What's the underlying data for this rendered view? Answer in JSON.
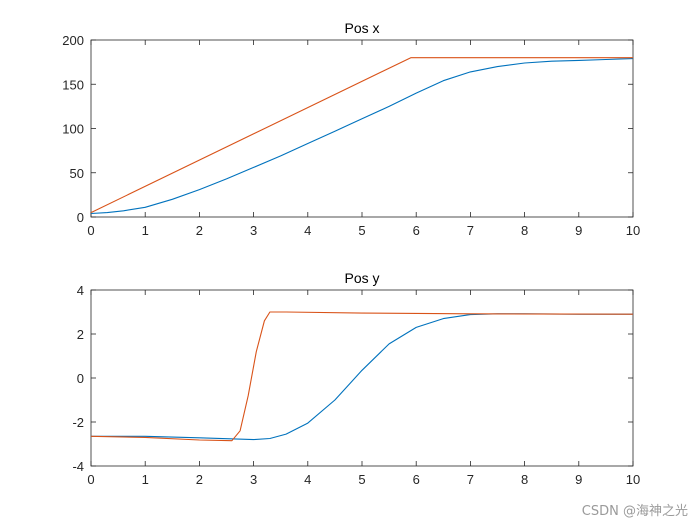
{
  "chart_data": [
    {
      "type": "line",
      "title": "Pos x",
      "xlabel": "",
      "ylabel": "",
      "xlim": [
        0,
        10
      ],
      "ylim": [
        0,
        200
      ],
      "xticks": [
        0,
        1,
        2,
        3,
        4,
        5,
        6,
        7,
        8,
        9,
        10
      ],
      "yticks": [
        0,
        50,
        100,
        150,
        200
      ],
      "grid": false,
      "series": [
        {
          "color": "#0072BD",
          "x": [
            0,
            0.3,
            0.6,
            1,
            1.5,
            2,
            2.5,
            3,
            3.5,
            4,
            4.5,
            5,
            5.5,
            6,
            6.5,
            7,
            7.5,
            8,
            8.5,
            9,
            9.5,
            10
          ],
          "values": [
            4,
            5,
            7,
            11,
            20,
            31,
            43,
            56,
            69,
            83,
            97,
            111,
            125,
            140,
            154,
            164,
            170,
            174,
            176,
            177,
            178,
            179
          ]
        },
        {
          "color": "#D95319",
          "x": [
            0,
            5.9,
            10
          ],
          "values": [
            5,
            180,
            180
          ]
        }
      ]
    },
    {
      "type": "line",
      "title": "Pos y",
      "xlabel": "",
      "ylabel": "",
      "xlim": [
        0,
        10
      ],
      "ylim": [
        -4,
        4
      ],
      "xticks": [
        0,
        1,
        2,
        3,
        4,
        5,
        6,
        7,
        8,
        9,
        10
      ],
      "yticks": [
        -4,
        -2,
        0,
        2,
        4
      ],
      "grid": false,
      "series": [
        {
          "color": "#0072BD",
          "x": [
            0,
            1,
            2,
            2.5,
            3,
            3.3,
            3.6,
            4,
            4.5,
            5,
            5.5,
            6,
            6.5,
            7,
            7.5,
            8,
            9,
            10
          ],
          "values": [
            -2.65,
            -2.65,
            -2.72,
            -2.76,
            -2.8,
            -2.75,
            -2.55,
            -2.05,
            -1.0,
            0.35,
            1.55,
            2.3,
            2.7,
            2.88,
            2.92,
            2.92,
            2.9,
            2.9
          ]
        },
        {
          "color": "#D95319",
          "x": [
            0,
            1,
            2,
            2.6,
            2.75,
            2.9,
            3.05,
            3.2,
            3.3,
            3.6,
            5,
            7,
            10
          ],
          "values": [
            -2.65,
            -2.7,
            -2.82,
            -2.85,
            -2.4,
            -0.8,
            1.2,
            2.6,
            3.0,
            3.0,
            2.95,
            2.92,
            2.9
          ]
        }
      ]
    }
  ],
  "watermark": "CSDN @海神之光"
}
